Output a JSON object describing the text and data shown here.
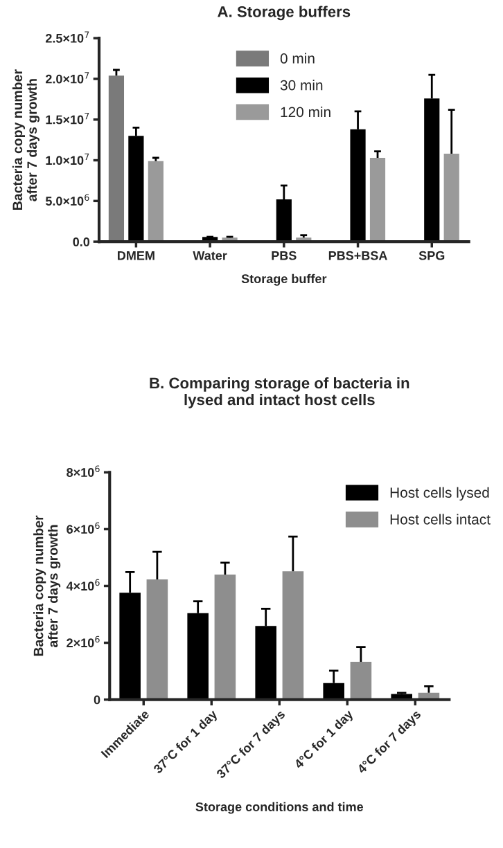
{
  "chart_data": [
    {
      "type": "bar",
      "title": "A. Storage buffers",
      "xlabel": "Storage buffer",
      "ylabel": "Bacteria copy number\nafter 7 days growth",
      "categories": [
        "DMEM",
        "Water",
        "PBS",
        "PBS+BSA",
        "SPG"
      ],
      "series": [
        {
          "name": "0 min",
          "color": "#7a7a7a",
          "values": [
            20400000,
            null,
            null,
            null,
            null
          ],
          "errors": [
            [
              20400000,
              21100000
            ],
            null,
            null,
            null,
            null
          ]
        },
        {
          "name": "30 min",
          "color": "#000000",
          "values": [
            13000000,
            580000,
            5200000,
            13800000,
            17600000
          ],
          "errors": [
            [
              13000000,
              14000000
            ],
            [
              580000,
              600000
            ],
            [
              5200000,
              6900000
            ],
            [
              13800000,
              16000000
            ],
            [
              17600000,
              20500000
            ]
          ]
        },
        {
          "name": "120 min",
          "color": "#9a9a9a",
          "values": [
            9900000,
            500000,
            500000,
            10300000,
            10800000
          ],
          "errors": [
            [
              9900000,
              10300000
            ],
            [
              500000,
              600000
            ],
            [
              500000,
              800000
            ],
            [
              10300000,
              11100000
            ],
            [
              10800000,
              16200000
            ]
          ]
        }
      ],
      "ylim": [
        0,
        25000000
      ],
      "yticks": [
        {
          "value": 0,
          "label": "0.0"
        },
        {
          "value": 5000000,
          "label": "5.0×10$^{6}$"
        },
        {
          "value": 10000000,
          "label": "1.0×10$^{7}$"
        },
        {
          "value": 15000000,
          "label": "1.5×10$^{7}$"
        },
        {
          "value": 20000000,
          "label": "2.0×10$^{7}$"
        },
        {
          "value": 25000000,
          "label": "2.5×10$^{7}$"
        }
      ],
      "grid": false,
      "legend": "top"
    },
    {
      "type": "bar",
      "title": "B. Comparing storage of bacteria in\nlysed and intact host cells",
      "xlabel": "Storage conditions and time",
      "ylabel": "Bacteria copy number\nafter 7 days growth",
      "categories": [
        "Immediate",
        "37°C for 1 day",
        "37°C for 7 days",
        "4°C for 1 day",
        "4°C for 7 days"
      ],
      "series": [
        {
          "name": "Host cells lysed",
          "color": "#000000",
          "values": [
            3760000,
            3040000,
            2590000,
            580000,
            200000
          ],
          "errors": [
            [
              3760000,
              4490000
            ],
            [
              3040000,
              3460000
            ],
            [
              2590000,
              3200000
            ],
            [
              580000,
              1020000
            ],
            [
              200000,
              240000
            ]
          ]
        },
        {
          "name": "Host cells intact",
          "color": "#8e8e8e",
          "values": [
            4230000,
            4400000,
            4520000,
            1330000,
            240000
          ],
          "errors": [
            [
              4230000,
              5200000
            ],
            [
              4400000,
              4820000
            ],
            [
              4520000,
              5740000
            ],
            [
              1330000,
              1850000
            ],
            [
              240000,
              470000
            ]
          ]
        }
      ],
      "ylim": [
        0,
        8000000
      ],
      "yticks": [
        0,
        {
          "value": 2000000,
          "label": "2×10$^{6}$"
        },
        {
          "value": 4000000,
          "label": "4×10$^{6}$"
        },
        {
          "value": 6000000,
          "label": "6×10$^{6}$"
        },
        {
          "value": 8000000,
          "label": "8×10$^{6}$"
        }
      ],
      "grid": false,
      "legend": "top right"
    }
  ]
}
